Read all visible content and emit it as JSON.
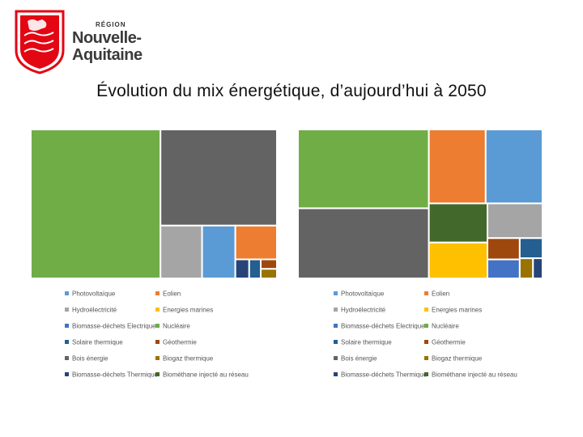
{
  "logo": {
    "region": "RÉGION",
    "name_line1": "Nouvelle-",
    "name_line2": "Aquitaine",
    "color": "#e30613"
  },
  "title": "Évolution du mix énergétique, d’aujourd’hui à 2050",
  "colors": {
    "Photovoltaïque": "#5b9bd5",
    "Eolien": "#ed7d31",
    "Hydroélectricité": "#a5a5a5",
    "Energies marines": "#ffc000",
    "Biomasse-déchets Electrique": "#4472c4",
    "Nucléaire": "#70ad47",
    "Solaire thermique": "#255e91",
    "Géothermie": "#9e480e",
    "Bois énergie": "#636363",
    "Biogaz thermique": "#997300",
    "Biomasse-déchets Thermique": "#264478",
    "Biométhane injecté au réseau": "#43682b"
  },
  "chart_data": [
    {
      "type": "treemap",
      "period": "aujourd'hui",
      "title": "",
      "items": [
        {
          "name": "Nucléaire",
          "value": 44
        },
        {
          "name": "Bois énergie",
          "value": 25.5
        },
        {
          "name": "Hydroélectricité",
          "value": 5
        },
        {
          "name": "Photovoltaïque",
          "value": 4
        },
        {
          "name": "Eolien",
          "value": 3.2
        },
        {
          "name": "Biomasse-déchets Thermique",
          "value": 0.6
        },
        {
          "name": "Solaire thermique",
          "value": 0.5
        },
        {
          "name": "Géothermie",
          "value": 0.35
        },
        {
          "name": "Biogaz thermique",
          "value": 0.35
        }
      ],
      "legend": [
        "Photovoltaïque",
        "Eolien",
        "Hydroélectricité",
        "Energies marines",
        "Biomasse-déchets Electrique",
        "Nucléaire",
        "Solaire thermique",
        "Géothermie",
        "Bois énergie",
        "Biogaz thermique",
        "Biomasse-déchets Thermique",
        "Biométhane injecté au réseau"
      ]
    },
    {
      "type": "treemap",
      "period": "2050",
      "title": "",
      "items": [
        {
          "name": "Nucléaire",
          "value": 27
        },
        {
          "name": "Bois énergie",
          "value": 24
        },
        {
          "name": "Eolien",
          "value": 11
        },
        {
          "name": "Photovoltaïque",
          "value": 11
        },
        {
          "name": "Biométhane injecté au réseau",
          "value": 6
        },
        {
          "name": "Energies marines",
          "value": 5.5
        },
        {
          "name": "Hydroélectricité",
          "value": 5
        },
        {
          "name": "Géothermie",
          "value": 1.8
        },
        {
          "name": "Biomasse-déchets Electrique",
          "value": 1.6
        },
        {
          "name": "Solaire thermique",
          "value": 1.2
        },
        {
          "name": "Biogaz thermique",
          "value": 0.7
        },
        {
          "name": "Biomasse-déchets Thermique",
          "value": 0.5
        }
      ],
      "legend": [
        "Photovoltaïque",
        "Eolien",
        "Hydroélectricité",
        "Energies marines",
        "Biomasse-déchets Electrique",
        "Nucléaire",
        "Solaire thermique",
        "Géothermie",
        "Bois énergie",
        "Biogaz thermique",
        "Biomasse-déchets Thermique",
        "Biométhane injecté au réseau"
      ]
    }
  ]
}
